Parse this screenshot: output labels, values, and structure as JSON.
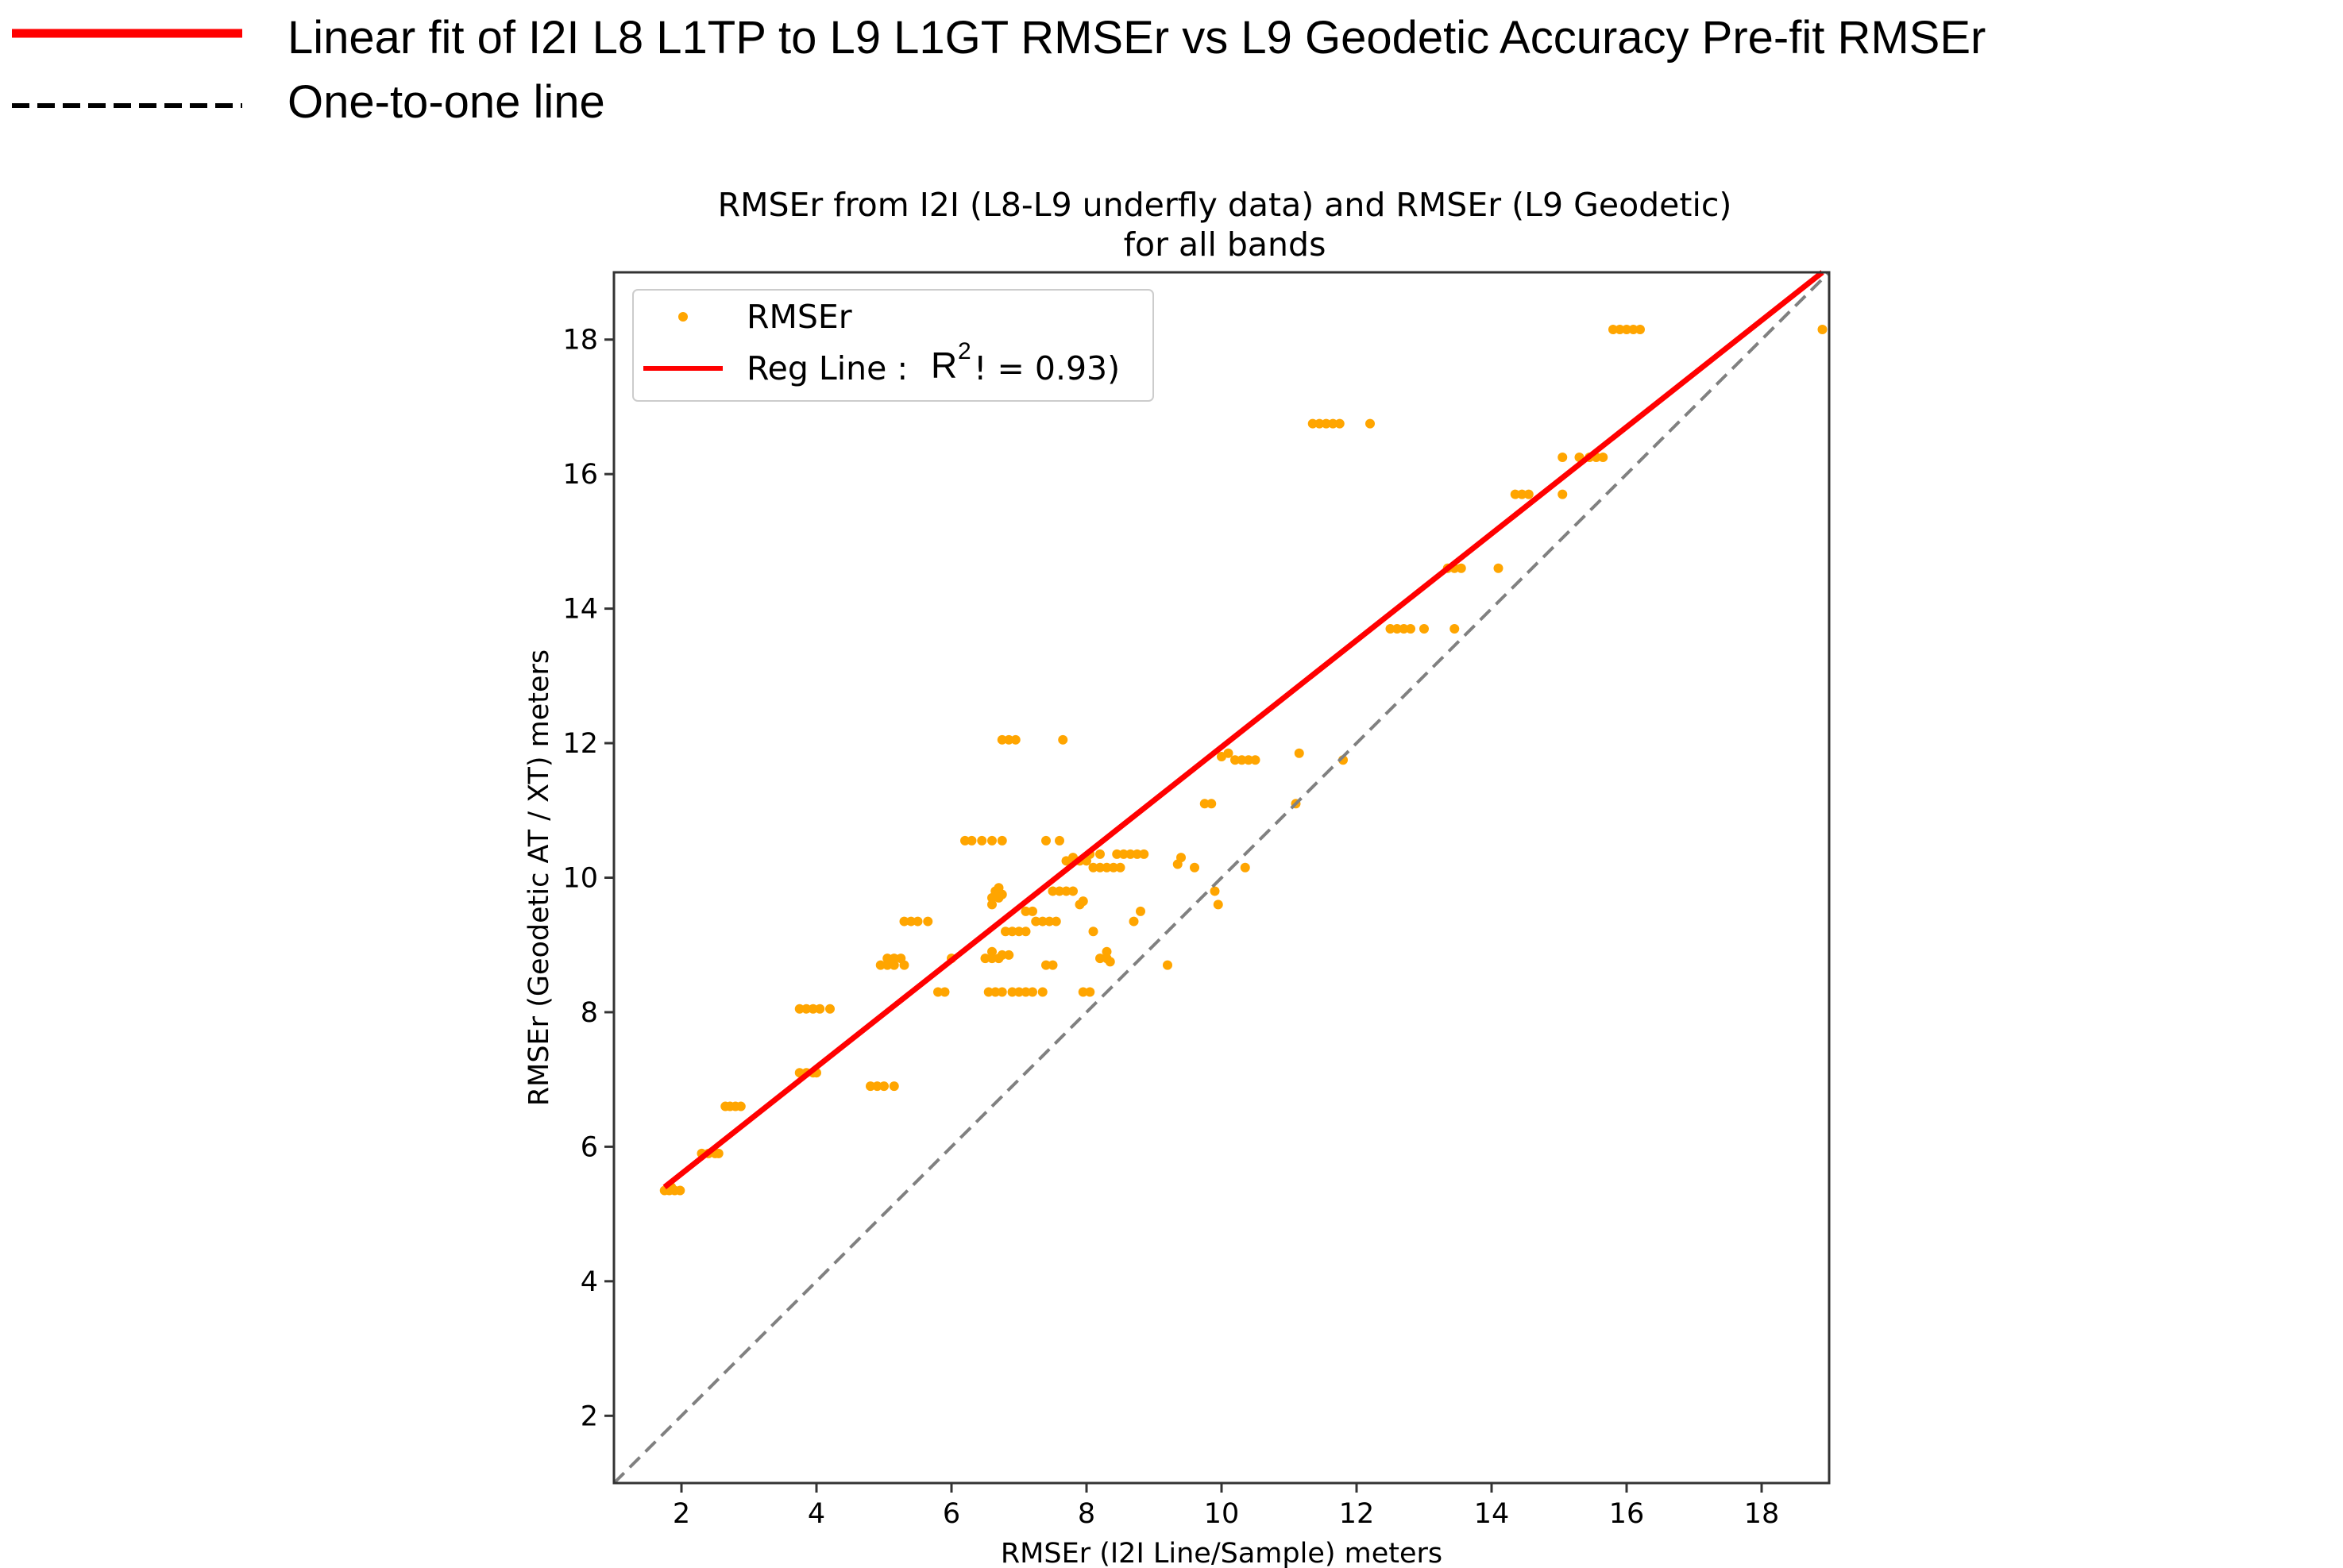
{
  "top_legend": {
    "fit_label": "Linear fit of I2I L8 L1TP to L9 L1GT RMSEr vs L9 Geodetic Accuracy Pre-fit RMSEr",
    "one_to_one_label": "One-to-one line",
    "fit_color": "#ff0000",
    "one_to_one_color": "#000000"
  },
  "chart_data": {
    "type": "scatter",
    "title": "RMSEr from I2I (L8-L9 underfly data) and RMSEr (L9 Geodetic)",
    "subtitle": "for all bands",
    "xlabel": "RMSEr (I2I Line/Sample) meters",
    "ylabel": "RMSEr (Geodetic AT / XT) meters",
    "xlim": [
      1,
      19
    ],
    "ylim": [
      1,
      19
    ],
    "xticks": [
      2,
      4,
      6,
      8,
      10,
      12,
      14,
      16,
      18
    ],
    "yticks": [
      2,
      4,
      6,
      8,
      10,
      12,
      14,
      16,
      18
    ],
    "legend_position": "upper-left",
    "marker_color": "#ffa500",
    "series": [
      {
        "name": "RMSEr",
        "kind": "points",
        "color": "#ffa500",
        "points": [
          [
            1.75,
            5.35
          ],
          [
            1.82,
            5.35
          ],
          [
            1.9,
            5.35
          ],
          [
            1.98,
            5.35
          ],
          [
            1.85,
            5.4
          ],
          [
            2.3,
            5.9
          ],
          [
            2.4,
            5.9
          ],
          [
            2.5,
            5.9
          ],
          [
            2.55,
            5.9
          ],
          [
            2.65,
            6.6
          ],
          [
            2.72,
            6.6
          ],
          [
            2.8,
            6.6
          ],
          [
            2.88,
            6.6
          ],
          [
            3.75,
            8.05
          ],
          [
            3.85,
            8.05
          ],
          [
            3.95,
            8.05
          ],
          [
            4.05,
            8.05
          ],
          [
            4.2,
            8.05
          ],
          [
            3.75,
            7.1
          ],
          [
            3.85,
            7.1
          ],
          [
            3.95,
            7.1
          ],
          [
            4.0,
            7.1
          ],
          [
            4.8,
            6.9
          ],
          [
            4.9,
            6.9
          ],
          [
            5.0,
            6.9
          ],
          [
            5.15,
            6.9
          ],
          [
            4.95,
            8.7
          ],
          [
            5.05,
            8.7
          ],
          [
            5.15,
            8.7
          ],
          [
            5.3,
            8.7
          ],
          [
            5.05,
            8.8
          ],
          [
            5.15,
            8.8
          ],
          [
            5.25,
            8.8
          ],
          [
            5.3,
            9.35
          ],
          [
            5.4,
            9.35
          ],
          [
            5.5,
            9.35
          ],
          [
            5.65,
            9.35
          ],
          [
            5.8,
            8.3
          ],
          [
            5.9,
            8.3
          ],
          [
            6.0,
            8.8
          ],
          [
            6.2,
            10.55
          ],
          [
            6.3,
            10.55
          ],
          [
            6.45,
            10.55
          ],
          [
            6.6,
            10.55
          ],
          [
            6.75,
            10.55
          ],
          [
            6.5,
            8.8
          ],
          [
            6.6,
            8.8
          ],
          [
            6.7,
            8.8
          ],
          [
            6.75,
            8.85
          ],
          [
            6.85,
            8.85
          ],
          [
            6.6,
            8.9
          ],
          [
            6.55,
            8.3
          ],
          [
            6.65,
            8.3
          ],
          [
            6.75,
            8.3
          ],
          [
            6.9,
            8.3
          ],
          [
            7.0,
            8.3
          ],
          [
            7.1,
            8.3
          ],
          [
            7.2,
            8.3
          ],
          [
            7.35,
            8.3
          ],
          [
            6.6,
            9.7
          ],
          [
            6.7,
            9.7
          ],
          [
            6.75,
            9.75
          ],
          [
            6.65,
            9.8
          ],
          [
            6.7,
            9.85
          ],
          [
            6.6,
            9.6
          ],
          [
            6.8,
            9.2
          ],
          [
            6.9,
            9.2
          ],
          [
            7.0,
            9.2
          ],
          [
            7.1,
            9.2
          ],
          [
            7.1,
            9.5
          ],
          [
            7.2,
            9.5
          ],
          [
            7.25,
            9.35
          ],
          [
            7.35,
            9.35
          ],
          [
            7.45,
            9.35
          ],
          [
            7.55,
            9.35
          ],
          [
            6.75,
            12.05
          ],
          [
            6.85,
            12.05
          ],
          [
            6.95,
            12.05
          ],
          [
            7.65,
            12.05
          ],
          [
            7.4,
            10.55
          ],
          [
            7.6,
            10.55
          ],
          [
            7.4,
            8.7
          ],
          [
            7.5,
            8.7
          ],
          [
            7.5,
            9.8
          ],
          [
            7.6,
            9.8
          ],
          [
            7.7,
            9.8
          ],
          [
            7.8,
            9.8
          ],
          [
            7.7,
            10.25
          ],
          [
            7.8,
            10.3
          ],
          [
            7.9,
            10.25
          ],
          [
            8.0,
            10.25
          ],
          [
            7.9,
            9.6
          ],
          [
            7.95,
            9.65
          ],
          [
            7.95,
            8.3
          ],
          [
            8.05,
            8.3
          ],
          [
            8.1,
            9.2
          ],
          [
            8.1,
            10.15
          ],
          [
            8.2,
            10.15
          ],
          [
            8.3,
            10.15
          ],
          [
            8.4,
            10.15
          ],
          [
            8.5,
            10.15
          ],
          [
            8.05,
            10.35
          ],
          [
            8.2,
            10.35
          ],
          [
            8.2,
            8.8
          ],
          [
            8.3,
            8.8
          ],
          [
            8.3,
            8.9
          ],
          [
            8.35,
            8.75
          ],
          [
            8.45,
            10.35
          ],
          [
            8.55,
            10.35
          ],
          [
            8.65,
            10.35
          ],
          [
            8.75,
            10.35
          ],
          [
            8.85,
            10.35
          ],
          [
            8.7,
            9.35
          ],
          [
            8.8,
            9.5
          ],
          [
            9.2,
            8.7
          ],
          [
            9.35,
            10.2
          ],
          [
            9.4,
            10.3
          ],
          [
            9.6,
            10.15
          ],
          [
            9.75,
            11.1
          ],
          [
            9.85,
            11.1
          ],
          [
            9.9,
            9.8
          ],
          [
            9.95,
            9.6
          ],
          [
            10.0,
            11.8
          ],
          [
            10.1,
            11.85
          ],
          [
            10.2,
            11.75
          ],
          [
            10.3,
            11.75
          ],
          [
            10.4,
            11.75
          ],
          [
            10.5,
            11.75
          ],
          [
            10.35,
            10.15
          ],
          [
            11.15,
            11.85
          ],
          [
            11.1,
            11.1
          ],
          [
            11.35,
            16.75
          ],
          [
            11.45,
            16.75
          ],
          [
            11.55,
            16.75
          ],
          [
            11.65,
            16.75
          ],
          [
            11.75,
            16.75
          ],
          [
            12.2,
            16.75
          ],
          [
            11.8,
            11.75
          ],
          [
            12.5,
            13.7
          ],
          [
            12.6,
            13.7
          ],
          [
            12.7,
            13.7
          ],
          [
            12.8,
            13.7
          ],
          [
            13.0,
            13.7
          ],
          [
            13.35,
            14.6
          ],
          [
            13.45,
            14.6
          ],
          [
            13.55,
            14.6
          ],
          [
            13.45,
            13.7
          ],
          [
            14.1,
            14.6
          ],
          [
            14.35,
            15.7
          ],
          [
            14.45,
            15.7
          ],
          [
            14.55,
            15.7
          ],
          [
            15.05,
            16.25
          ],
          [
            15.05,
            15.7
          ],
          [
            15.3,
            16.25
          ],
          [
            15.45,
            16.25
          ],
          [
            15.55,
            16.25
          ],
          [
            15.65,
            16.25
          ],
          [
            15.8,
            18.15
          ],
          [
            15.9,
            18.15
          ],
          [
            16.0,
            18.15
          ],
          [
            16.1,
            18.15
          ],
          [
            16.2,
            18.15
          ],
          [
            18.9,
            18.15
          ]
        ]
      },
      {
        "name": "Reg Line",
        "kind": "line",
        "color": "#ff0000",
        "r2_label": "R",
        "r2_sup": "2",
        "r2_value": "! = 0.93)",
        "label_prefix": "Reg Line : ",
        "x": [
          1.75,
          18.9
        ],
        "y": [
          5.4,
          19.0
        ]
      },
      {
        "name": "One-to-one line",
        "kind": "line",
        "color": "#808080",
        "dashed": true,
        "x": [
          1,
          19
        ],
        "y": [
          1,
          19
        ]
      }
    ]
  }
}
